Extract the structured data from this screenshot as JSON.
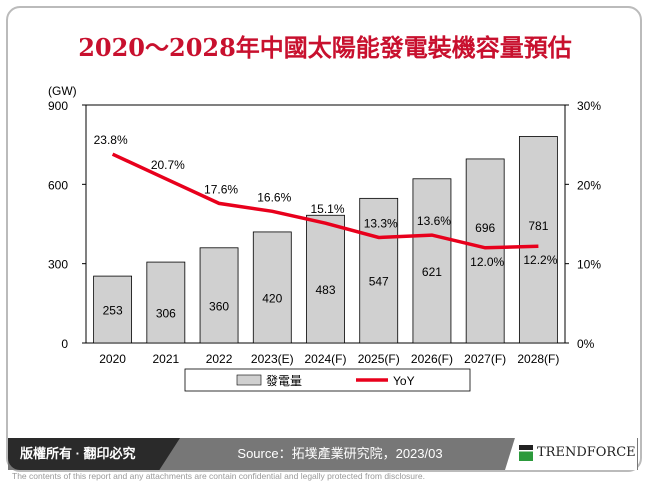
{
  "title": "2020～2028年中國太陽能發電裝機容量預估",
  "footer": {
    "copyright": "版權所有 · 翻印必究",
    "source": "Source：拓墣產業研究院，2023/03",
    "brand": "TRENDFORCE",
    "disclaimer": "The contents of this report and any attachments are contain confidential and legally protected from disclosure."
  },
  "colors": {
    "bar": "#d0d0d0",
    "line": "#e8001c",
    "title": "#c8102e"
  },
  "chart_data": {
    "type": "bar+line",
    "categories": [
      "2020",
      "2021",
      "2022",
      "2023(E)",
      "2024(F)",
      "2025(F)",
      "2026(F)",
      "2027(F)",
      "2028(F)"
    ],
    "series": [
      {
        "name": "發電量",
        "type": "bar",
        "axis": "left",
        "values": [
          253,
          306,
          360,
          420,
          483,
          547,
          621,
          696,
          781
        ],
        "labels": [
          "253",
          "306",
          "360",
          "420",
          "483",
          "547",
          "621",
          "696",
          "781"
        ]
      },
      {
        "name": "YoY",
        "type": "line",
        "axis": "right",
        "values": [
          23.8,
          20.7,
          17.6,
          16.6,
          15.1,
          13.3,
          13.6,
          12.0,
          12.2
        ],
        "labels": [
          "23.8%",
          "20.7%",
          "17.6%",
          "16.6%",
          "15.1%",
          "13.3%",
          "13.6%",
          "12.0%",
          "12.2%"
        ]
      }
    ],
    "yunit": "(GW)",
    "ylim": [
      0,
      900
    ],
    "yticks": [
      "0",
      "300",
      "600",
      "900"
    ],
    "y2lim": [
      0,
      30
    ],
    "y2ticks": [
      "0%",
      "10%",
      "20%",
      "30%"
    ],
    "legend": "bottom",
    "grid": false
  }
}
